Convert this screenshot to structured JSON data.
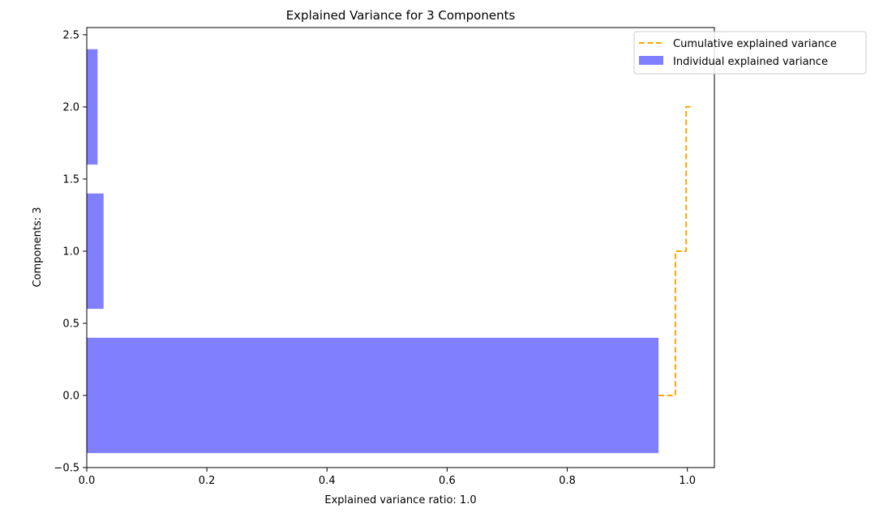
{
  "chart_data": {
    "type": "bar",
    "orientation": "horizontal",
    "title": "Explained Variance for 3 Components",
    "xlabel": "Explained variance ratio: 1.0",
    "ylabel": "Components: 3",
    "xlim": [
      0.0,
      1.045
    ],
    "ylim": [
      -0.5,
      2.55
    ],
    "xticks": [
      0.0,
      0.2,
      0.4,
      0.6,
      0.8,
      1.0
    ],
    "xtick_labels": [
      "0.0",
      "0.2",
      "0.4",
      "0.6",
      "0.8",
      "1.0"
    ],
    "yticks": [
      -0.5,
      0.0,
      0.5,
      1.0,
      1.5,
      2.0,
      2.5
    ],
    "ytick_labels": [
      "−0.5",
      "0.0",
      "0.5",
      "1.0",
      "1.5",
      "2.0",
      "2.5"
    ],
    "grid": false,
    "legend_position": "top-right",
    "series": [
      {
        "name": "Individual explained variance",
        "kind": "bar",
        "color": "#8080ff",
        "categories": [
          0,
          1,
          2
        ],
        "values": [
          0.952,
          0.028,
          0.018
        ]
      },
      {
        "name": "Cumulative explained variance",
        "kind": "step",
        "color": "#ffa500",
        "linestyle": "dashed",
        "categories": [
          0,
          1,
          2
        ],
        "values": [
          0.952,
          0.98,
          0.998
        ]
      }
    ]
  }
}
